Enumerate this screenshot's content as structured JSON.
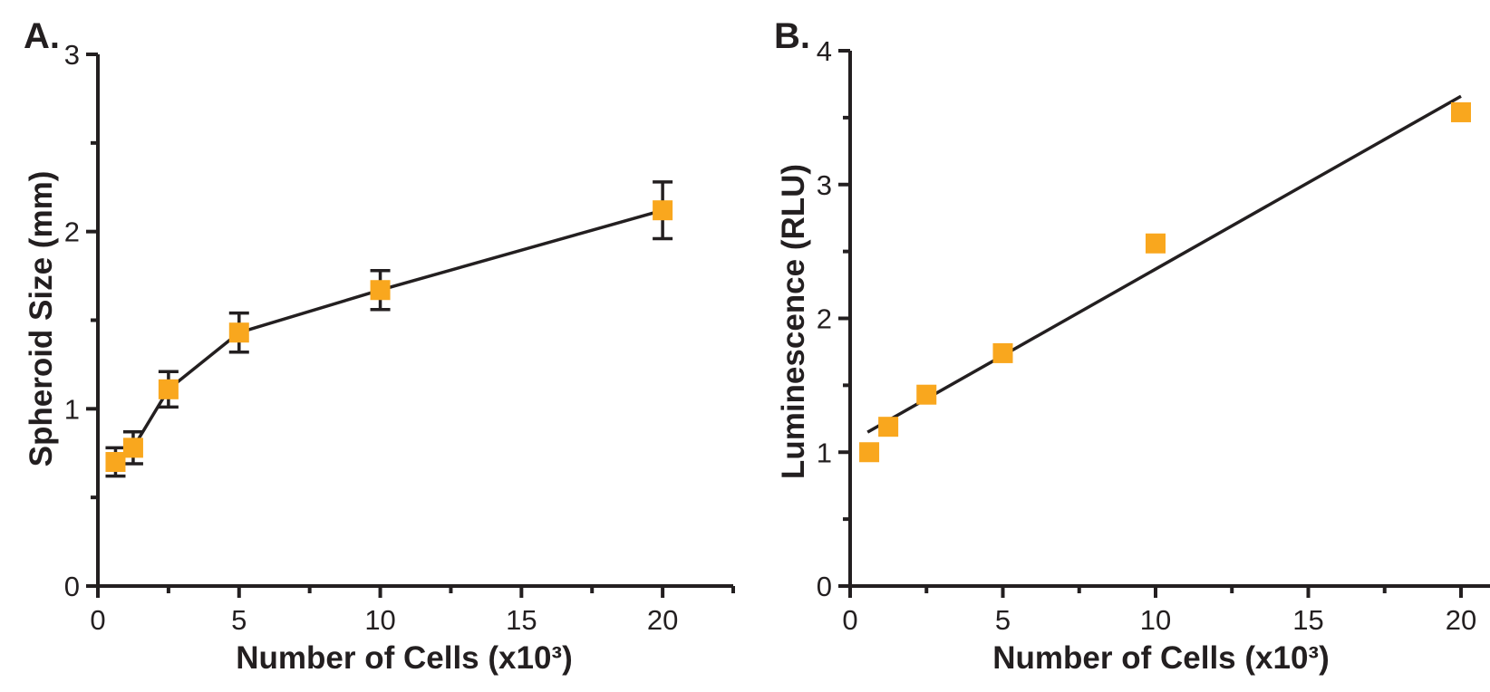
{
  "figure": {
    "background": "#ffffff",
    "axis_color": "#231f20",
    "marker_color": "#F9A71E"
  },
  "chart_data": [
    {
      "type": "scatter",
      "panel_label": "A.",
      "xlabel": "Number of Cells (x10³)",
      "ylabel": "Spheroid Size (mm)",
      "x": [
        0.625,
        1.25,
        2.5,
        5,
        10,
        20
      ],
      "y": [
        0.7,
        0.78,
        1.11,
        1.43,
        1.67,
        2.12
      ],
      "y_err": [
        0.08,
        0.09,
        0.1,
        0.11,
        0.11,
        0.16
      ],
      "xlim": [
        0,
        22.5
      ],
      "ylim": [
        0,
        3
      ],
      "x_major_ticks": [
        0,
        5,
        10,
        15,
        20
      ],
      "x_minor_step": 2.5,
      "y_major_ticks": [
        0,
        1,
        2,
        3
      ],
      "y_minor_step": 0.5,
      "marker": "square",
      "marker_color": "#F9A71E",
      "line": "connected",
      "grid": false,
      "legend": "none"
    },
    {
      "type": "scatter",
      "panel_label": "B.",
      "xlabel": "Number of Cells (x10³)",
      "ylabel": "Luminescence (RLU)",
      "x": [
        0.625,
        1.25,
        2.5,
        5,
        10,
        20
      ],
      "y": [
        1.0,
        1.19,
        1.43,
        1.74,
        2.56,
        3.54
      ],
      "xlim": [
        0,
        20.95
      ],
      "ylim": [
        0,
        4
      ],
      "x_major_ticks": [
        0,
        5,
        10,
        15,
        20
      ],
      "x_minor_step": 2.5,
      "y_major_ticks": [
        0,
        1,
        2,
        3,
        4
      ],
      "y_minor_step": 0.5,
      "marker": "square",
      "marker_color": "#F9A71E",
      "line": "linear-fit",
      "trendline": {
        "x1": 0.57,
        "y1": 1.15,
        "x2": 20.0,
        "y2": 3.66
      },
      "grid": false,
      "legend": "none"
    }
  ]
}
